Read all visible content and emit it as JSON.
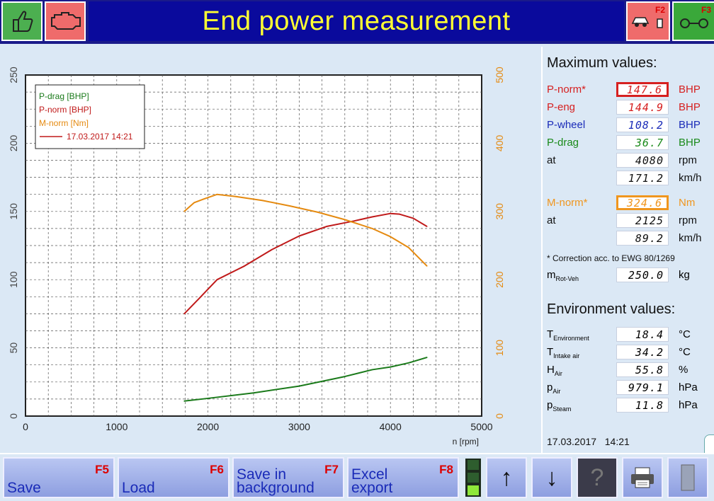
{
  "header": {
    "title": "End power measurement",
    "f2_label": "F2",
    "f3_label": "F3"
  },
  "chart_data": {
    "type": "line",
    "xlabel": "n [rpm]",
    "xlim": [
      0,
      5000
    ],
    "x_ticks": [
      "0",
      "1000",
      "2000",
      "3000",
      "4000",
      "5000"
    ],
    "y_left_lim": [
      0,
      250
    ],
    "y_left_ticks": [
      "0",
      "50",
      "100",
      "150",
      "200",
      "250"
    ],
    "y_right_lim": [
      0,
      500
    ],
    "y_right_ticks": [
      "0",
      "100",
      "200",
      "300",
      "400",
      "500"
    ],
    "grid": true,
    "legend_position": "top-left",
    "legend": [
      {
        "label": "P-drag [BHP]",
        "color": "#1a7a1a"
      },
      {
        "label": "P-norm [BHP]",
        "color": "#c01a1a"
      },
      {
        "label": "M-norm [Nm]",
        "color": "#e58a10"
      },
      {
        "label": "17.03.2017 14:21",
        "color": "#c01a1a",
        "line": true
      }
    ],
    "series": [
      {
        "name": "P-drag [BHP]",
        "axis": "left",
        "color": "#1a7a1a",
        "x": [
          1740,
          2000,
          2500,
          3000,
          3500,
          3800,
          4000,
          4200,
          4400
        ],
        "y": [
          11,
          13,
          17,
          22,
          29,
          34,
          36,
          39,
          43
        ]
      },
      {
        "name": "P-norm [BHP]",
        "axis": "left",
        "color": "#c01a1a",
        "x": [
          1740,
          1900,
          2100,
          2400,
          2700,
          3000,
          3300,
          3600,
          3800,
          4000,
          4100,
          4250,
          4400
        ],
        "y": [
          75,
          86,
          100,
          110,
          122,
          132,
          139,
          143,
          146,
          148.5,
          148,
          145,
          139
        ]
      },
      {
        "name": "M-norm [Nm]",
        "axis": "right",
        "color": "#e58a10",
        "x": [
          1740,
          1850,
          1950,
          2100,
          2300,
          2600,
          2900,
          3200,
          3500,
          3800,
          4000,
          4200,
          4400
        ],
        "y": [
          300,
          313,
          318,
          325,
          322,
          316,
          308,
          299,
          288,
          275,
          263,
          247,
          220
        ]
      }
    ]
  },
  "max_values": {
    "title": "Maximum values:",
    "rows": [
      {
        "label": "P-norm*",
        "value": "147.6",
        "unit": "BHP",
        "color": "#d62020"
      },
      {
        "label": "P-eng",
        "value": "144.9",
        "unit": "BHP",
        "color": "#d62020"
      },
      {
        "label": "P-wheel",
        "value": "108.2",
        "unit": "BHP",
        "color": "#1a2bb8"
      },
      {
        "label": "P-drag",
        "value": "36.7",
        "unit": "BHP",
        "color": "#1a8a1a"
      },
      {
        "label": "at",
        "value": "4080",
        "unit": "rpm",
        "color": "#111"
      },
      {
        "label": "",
        "value": "171.2",
        "unit": "km/h",
        "color": "#111"
      },
      {
        "label": "M-norm*",
        "value": "324.6",
        "unit": "Nm",
        "color": "#f0961e"
      },
      {
        "label": "at",
        "value": "2125",
        "unit": "rpm",
        "color": "#111"
      },
      {
        "label": "",
        "value": "89.2",
        "unit": "km/h",
        "color": "#111"
      }
    ],
    "correction_note": "* Correction acc. to EWG 80/1269",
    "mrot": {
      "label": "m",
      "sub": "Rot-Veh",
      "value": "250.0",
      "unit": "kg"
    }
  },
  "env_values": {
    "title": "Environment values:",
    "rows": [
      {
        "label": "T",
        "sub": "Environment",
        "value": "18.4",
        "unit": "°C"
      },
      {
        "label": "T",
        "sub": "Intake air",
        "value": "34.2",
        "unit": "°C"
      },
      {
        "label": "H",
        "sub": "Air",
        "value": "55.8",
        "unit": "%"
      },
      {
        "label": "p",
        "sub": "Air",
        "value": "979.1",
        "unit": "hPa"
      },
      {
        "label": "p",
        "sub": "Steam",
        "value": "11.8",
        "unit": "hPa"
      }
    ],
    "date": "17.03.2017",
    "time": "14:21"
  },
  "toolbar": {
    "save": {
      "label": "Save",
      "key": "F5"
    },
    "load": {
      "label": "Load",
      "key": "F6"
    },
    "save_bg": {
      "label": "Save in\nbackground",
      "key": "F7"
    },
    "excel": {
      "label": "Excel\nexport",
      "key": "F8"
    },
    "up_icon": "↑",
    "down_icon": "↓",
    "help_icon": "?"
  }
}
